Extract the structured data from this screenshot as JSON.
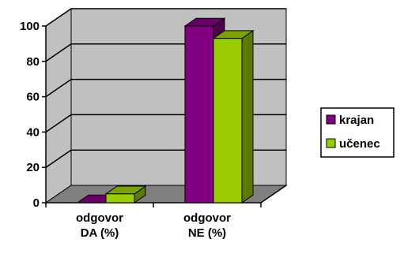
{
  "chart_data": {
    "type": "bar",
    "categories": [
      [
        "odgovor",
        "DA (%)"
      ],
      [
        "odgovor",
        "NE (%)"
      ]
    ],
    "series": [
      {
        "name": "krajan",
        "values": [
          0,
          100
        ],
        "color": "#800080"
      },
      {
        "name": "učenec",
        "values": [
          5,
          93
        ],
        "color": "#99cc00"
      }
    ],
    "ylim": [
      0,
      100
    ],
    "yticks": [
      0,
      20,
      40,
      60,
      80,
      100
    ],
    "legend_position": "right",
    "grid": true,
    "wall_color": "#c0c0c0",
    "floor_color": "#808080"
  }
}
